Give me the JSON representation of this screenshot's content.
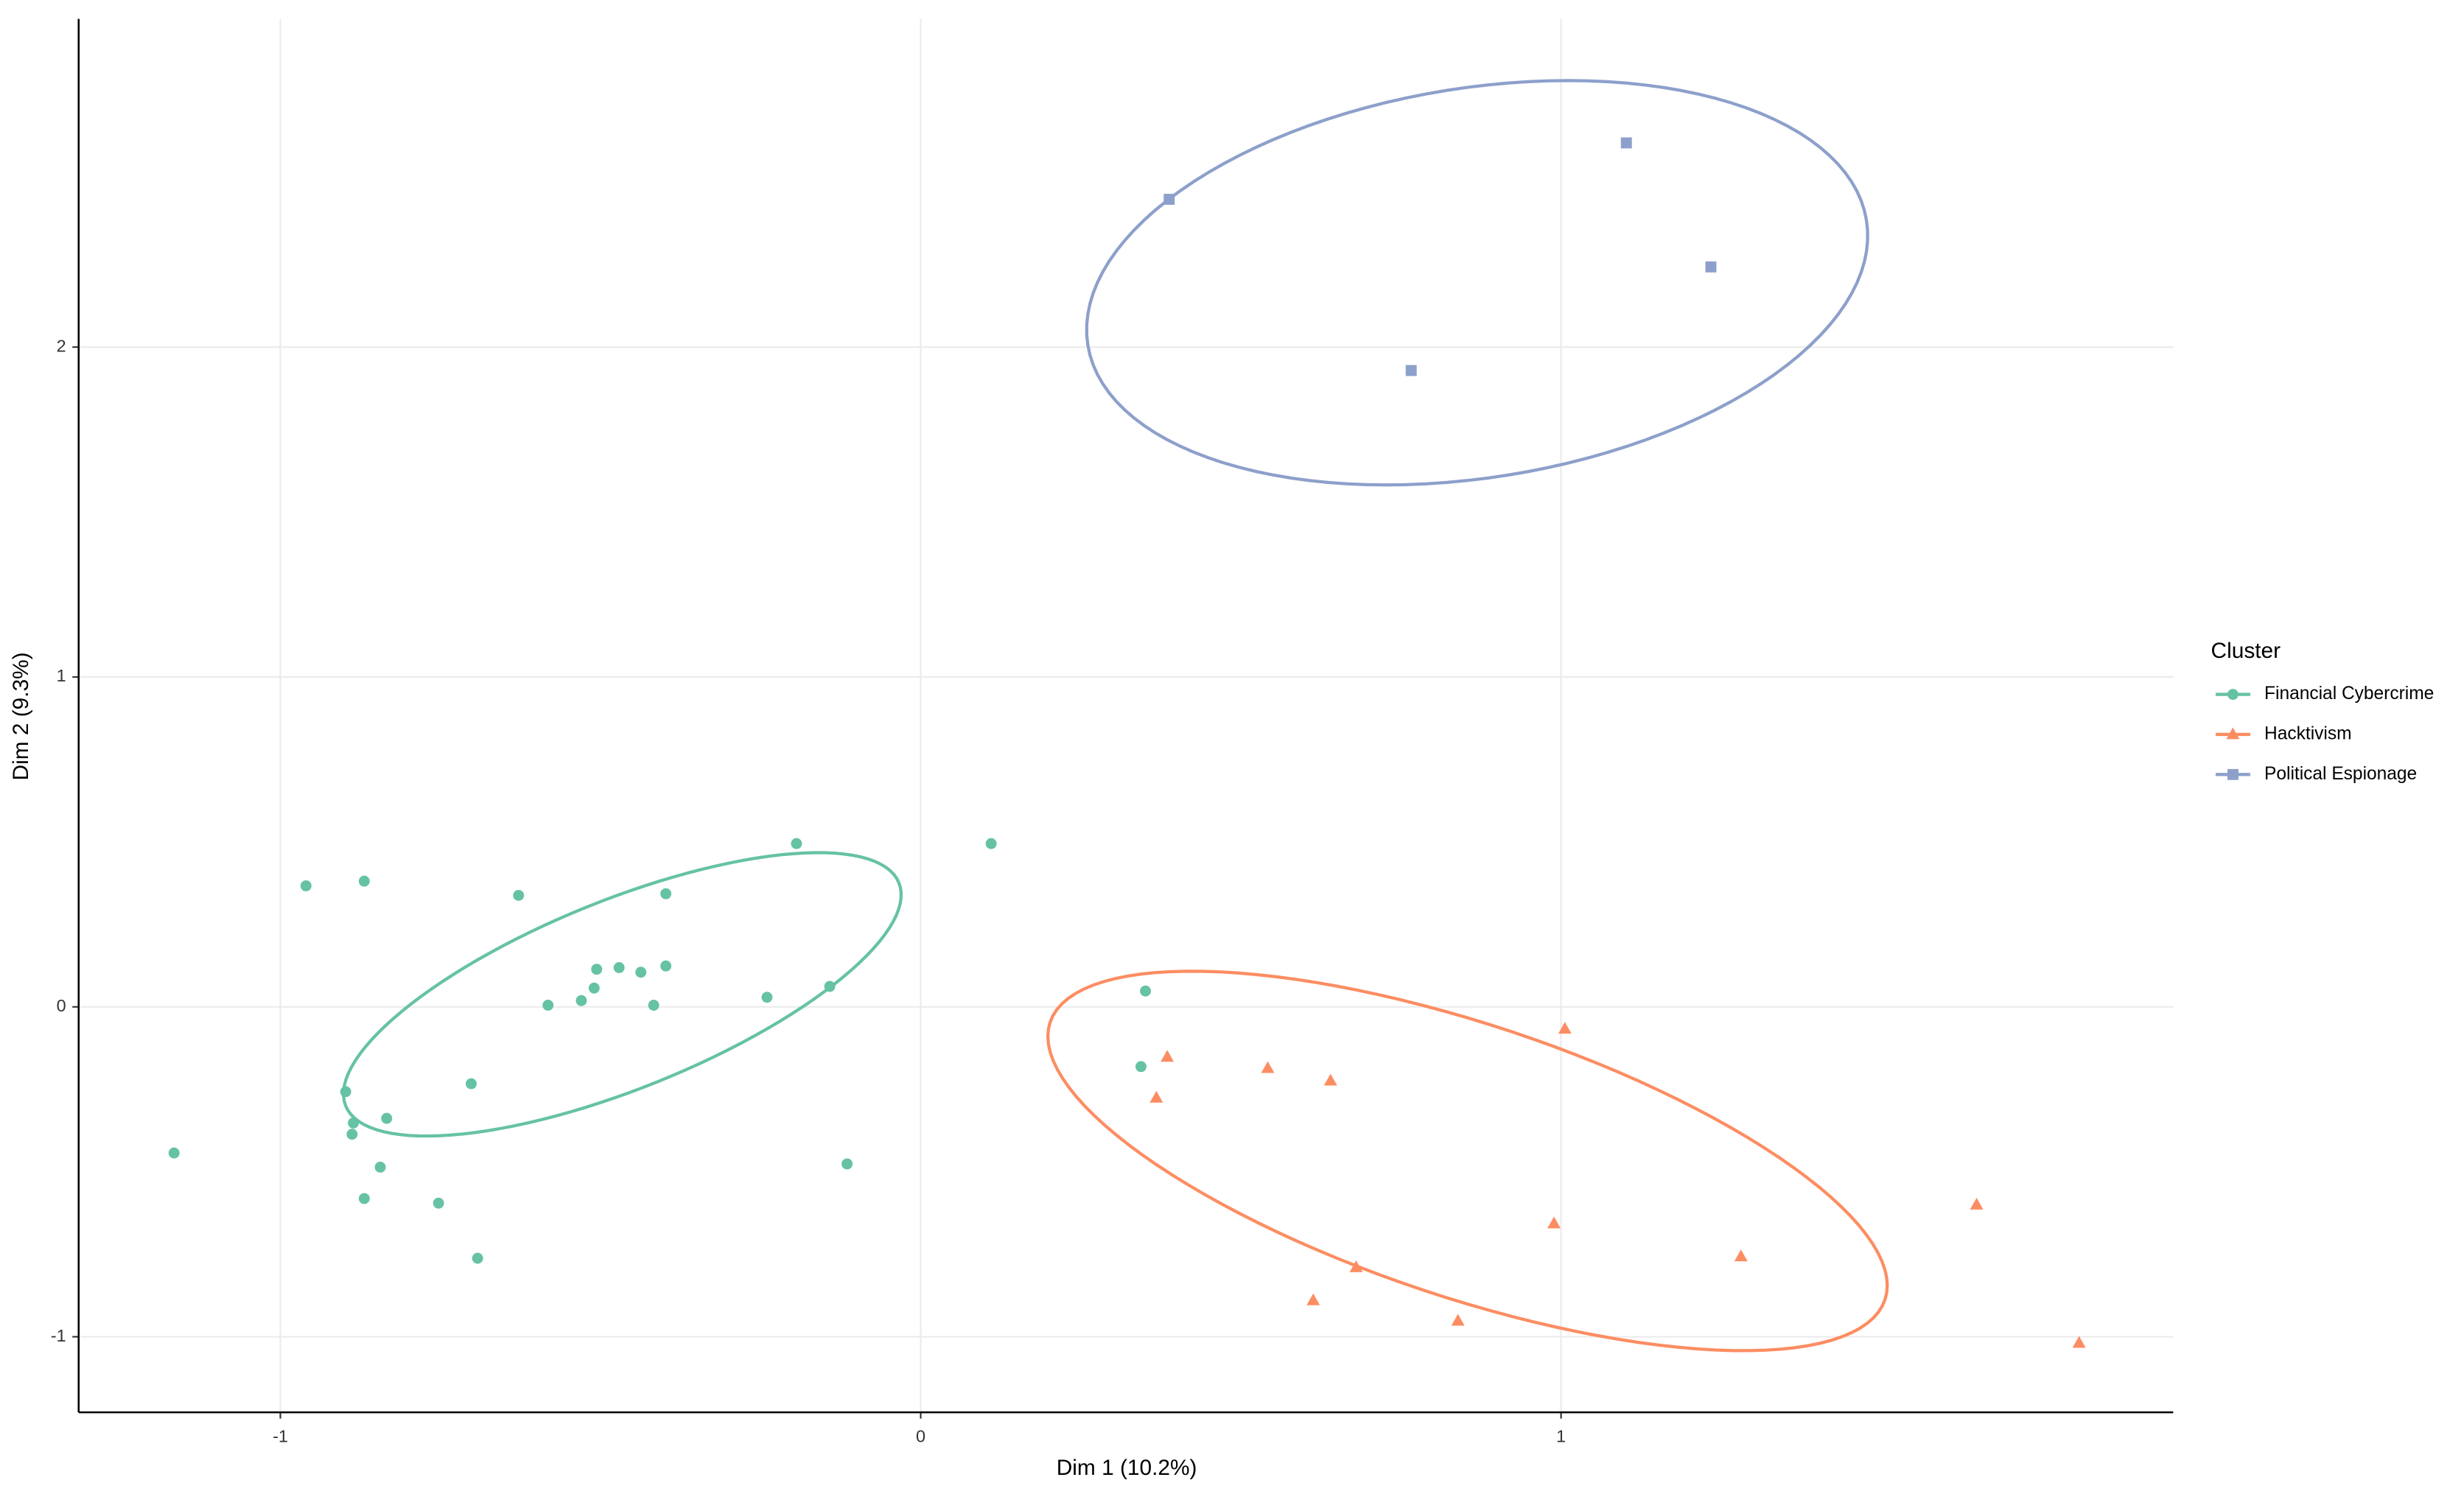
{
  "chart_data": {
    "type": "scatter",
    "x_label": "Dim 1 (10.2%)",
    "y_label": "Dim 2 (9.3%)",
    "legend_title": "Cluster",
    "legend": "right",
    "grid": true,
    "xlim": [
      -1.315,
      1.956
    ],
    "ylim": [
      -1.229,
      2.995
    ],
    "xticks": [
      -1,
      0,
      1
    ],
    "yticks": [
      -1,
      0,
      1,
      2
    ],
    "series": [
      {
        "name": "Financial Cybercrime",
        "color": "#66c2a5",
        "marker": "circle",
        "x": [
          -1.166,
          -0.96,
          -0.869,
          -0.628,
          -0.398,
          -0.194,
          0.11,
          -0.506,
          -0.471,
          -0.437,
          -0.398,
          -0.51,
          -0.582,
          -0.53,
          -0.417,
          -0.24,
          -0.142,
          0.351,
          0.344,
          -0.115,
          -0.702,
          -0.898,
          -0.886,
          -0.888,
          -0.834,
          -0.844,
          -0.869,
          -0.753,
          -0.692
        ],
        "values": [
          -0.443,
          0.367,
          0.381,
          0.338,
          0.343,
          0.495,
          0.495,
          0.114,
          0.119,
          0.105,
          0.124,
          0.057,
          0.005,
          0.019,
          0.005,
          0.029,
          0.062,
          0.048,
          -0.181,
          -0.476,
          -0.233,
          -0.257,
          -0.352,
          -0.386,
          -0.338,
          -0.486,
          -0.581,
          -0.595,
          -0.762
        ],
        "ellipse": {
          "center": [
            -0.466,
            0.038
          ],
          "axes": [
            [
              0.432,
              0.338
            ],
            [
              0.055,
              -0.265
            ]
          ]
        }
      },
      {
        "name": "Hacktivism",
        "color": "#fc8d62",
        "marker": "triangle",
        "x": [
          0.385,
          0.368,
          0.542,
          0.64,
          1.006,
          0.989,
          0.68,
          0.613,
          0.839,
          1.281,
          1.649,
          1.809
        ],
        "values": [
          -0.152,
          -0.276,
          -0.186,
          -0.224,
          -0.067,
          -0.657,
          -0.79,
          -0.89,
          -0.952,
          -0.757,
          -0.6,
          -1.019
        ],
        "ellipse": {
          "center": [
            0.854,
            -0.467
          ],
          "axes": [
            [
              0.652,
              -0.42
            ],
            [
              0.067,
              0.393
            ]
          ]
        }
      },
      {
        "name": "Political Espionage",
        "color": "#8da0cb",
        "marker": "square",
        "x": [
          0.388,
          1.102,
          1.234,
          0.766
        ],
        "values": [
          2.448,
          2.619,
          2.243,
          1.929
        ],
        "ellipse": {
          "center": [
            0.869,
            2.195
          ],
          "axes": [
            [
              0.608,
              0.189
            ],
            [
              0.048,
              -0.583
            ]
          ]
        }
      }
    ]
  }
}
